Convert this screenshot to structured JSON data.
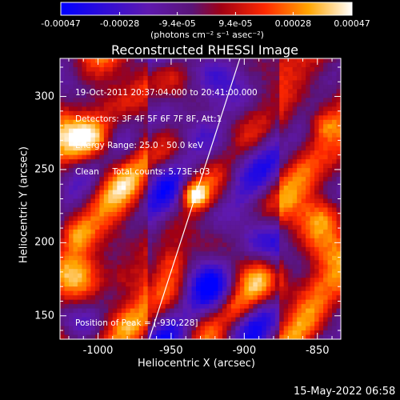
{
  "colorbar": {
    "colormap": "blue-purple-red-orange-yellow-white",
    "tick_labels": [
      "-0.00047",
      "-0.00028",
      "-9.4e-05",
      "9.4e-05",
      "0.00028",
      "0.00047"
    ],
    "tick_values": [
      -0.00047,
      -0.00028,
      -9.4e-05,
      9.4e-05,
      0.00028,
      0.00047
    ],
    "units_label": "(photons cm⁻² s⁻¹ asec⁻²)"
  },
  "title": "Reconstructed RHESSI Image",
  "info_lines": [
    "19-Oct-2011 20:37:04.000 to 20:41:00.000",
    "Detectors: 3F 4F 5F 6F 7F 8F, Att:1",
    "Energy Range: 25.0 - 50.0 keV",
    "Clean     Total counts: 5.73E+03"
  ],
  "peak_text": "Position of Peak = [-930,228]",
  "axes": {
    "x_label": "Heliocentric X (arcsec)",
    "y_label": "Heliocentric Y (arcsec)",
    "x_range": [
      -1026,
      -834
    ],
    "y_range": [
      134,
      326
    ],
    "x_ticks": [
      -1000,
      -950,
      -900,
      -850
    ],
    "x_tick_labels": [
      "-1000",
      "-950",
      "-900",
      "-850"
    ],
    "y_ticks": [
      150,
      200,
      250,
      300
    ],
    "y_tick_labels": [
      "150",
      "200",
      "250",
      "300"
    ]
  },
  "limb_line": {
    "x1": -965,
    "y1": 134,
    "x2": -903,
    "y2": 326
  },
  "footer_text": "15-May-2022 06:58"
}
